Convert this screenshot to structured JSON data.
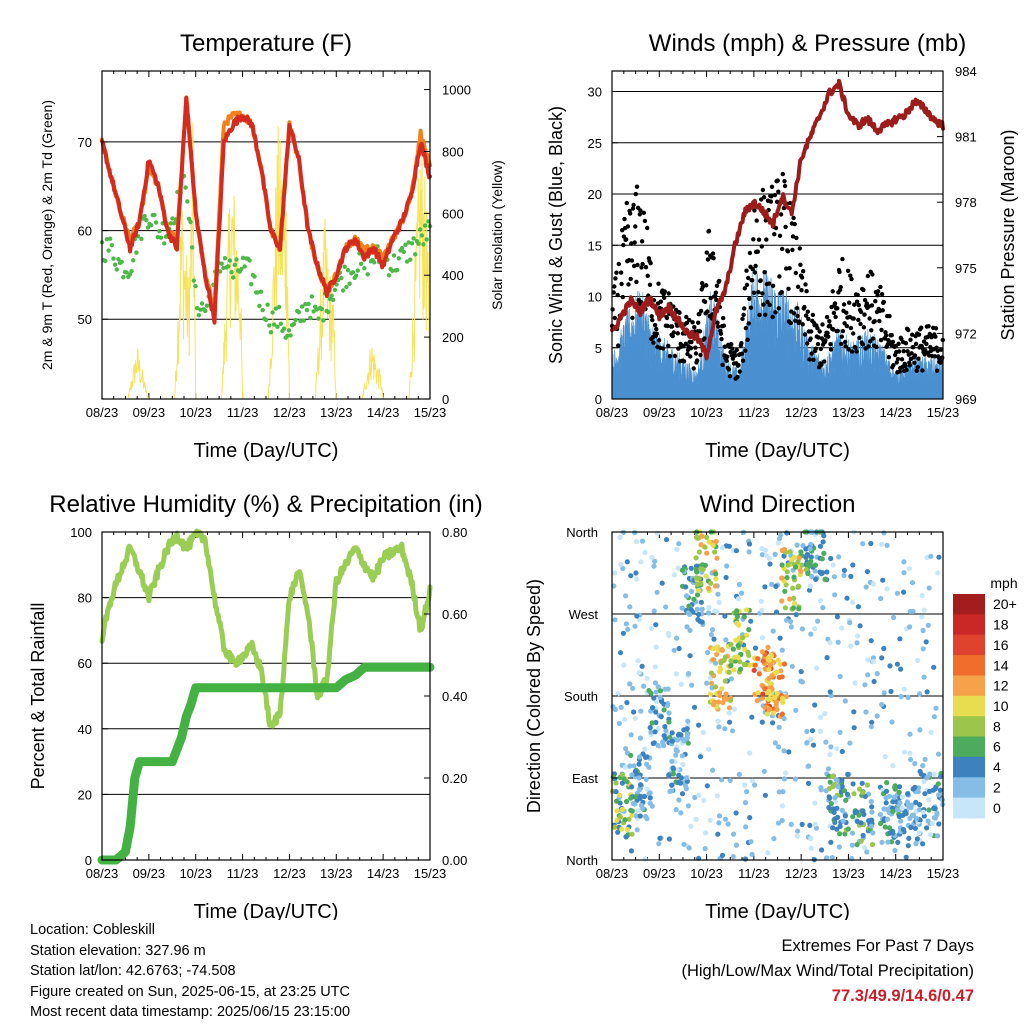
{
  "chart_data": [
    {
      "type": "line",
      "title": "Temperature (F)",
      "xlabel": "Time (Day/UTC)",
      "ylabel": "2m & 9m T (Red, Orange) & 2m Td (Green)",
      "y2label": "Solar Insolation (Yellow)",
      "x_ticks": [
        "08/23",
        "09/23",
        "10/23",
        "11/23",
        "12/23",
        "13/23",
        "14/23",
        "15/23"
      ],
      "ylim": [
        41,
        78
      ],
      "y_ticks": [
        50,
        60,
        70
      ],
      "y2lim": [
        0,
        1000
      ],
      "y2_ticks": [
        0,
        200,
        400,
        600,
        800,
        1000
      ],
      "grid": "horizontal",
      "series": [
        {
          "name": "2m T",
          "color": "#d52b1e",
          "x": [
            0,
            0.2,
            0.4,
            0.6,
            0.8,
            1.0,
            1.2,
            1.4,
            1.6,
            1.8,
            2.0,
            2.2,
            2.4,
            2.6,
            2.8,
            3.0,
            3.2,
            3.4,
            3.6,
            3.8,
            4.0,
            4.2,
            4.4,
            4.6,
            4.8,
            5.0,
            5.2,
            5.4,
            5.6,
            5.8,
            6.0,
            6.2,
            6.4,
            6.6,
            6.8,
            7.0
          ],
          "y": [
            70,
            66,
            62,
            58,
            61,
            68,
            65,
            60,
            58,
            75,
            62,
            55,
            50,
            70,
            72,
            73,
            72,
            67,
            60,
            58,
            72,
            68,
            60,
            56,
            53,
            55,
            58,
            59,
            57,
            58,
            56,
            59,
            61,
            64,
            70,
            66
          ]
        },
        {
          "name": "9m T",
          "color": "#f0821e",
          "x": [
            0,
            0.2,
            0.4,
            0.6,
            0.8,
            1.0,
            1.2,
            1.4,
            1.6,
            1.8,
            2.0,
            2.2,
            2.4,
            2.6,
            2.8,
            3.0,
            3.2,
            3.4,
            3.6,
            3.8,
            4.0,
            4.2,
            4.4,
            4.6,
            4.8,
            5.0,
            5.2,
            5.4,
            5.6,
            5.8,
            6.0,
            6.2,
            6.4,
            6.6,
            6.8,
            7.0
          ],
          "y": [
            70,
            66,
            62,
            59,
            61,
            67,
            65,
            60,
            59,
            75,
            62,
            55,
            51,
            72,
            73,
            73,
            72,
            67,
            60,
            58,
            72,
            68,
            60,
            56,
            53,
            55,
            58,
            59,
            58,
            58,
            57,
            59,
            61,
            64,
            71,
            67
          ]
        },
        {
          "name": "2m Td",
          "color": "#4cb848",
          "x": [
            0,
            0.2,
            0.4,
            0.6,
            0.8,
            1.0,
            1.2,
            1.4,
            1.6,
            1.8,
            2.0,
            2.2,
            2.4,
            2.6,
            2.8,
            3.0,
            3.2,
            3.4,
            3.6,
            3.8,
            4.0,
            4.2,
            4.4,
            4.6,
            4.8,
            5.0,
            5.2,
            5.4,
            5.6,
            5.8,
            6.0,
            6.2,
            6.4,
            6.6,
            6.8,
            7.0
          ],
          "y": [
            58,
            58,
            56,
            56,
            60,
            62,
            60,
            60,
            63,
            66,
            52,
            51,
            54,
            57,
            55,
            56,
            55,
            52,
            50,
            50,
            48,
            50,
            52,
            50,
            52,
            54,
            55,
            56,
            56,
            57,
            57,
            56,
            57,
            58,
            59,
            60
          ]
        },
        {
          "name": "Solar Insolation",
          "color": "#f7e35a",
          "axis": "right",
          "x": [
            0,
            0.55,
            0.75,
            0.95,
            1.0,
            1.55,
            1.7,
            1.85,
            1.95,
            2.0,
            2.55,
            2.75,
            2.95,
            3.0,
            3.55,
            3.75,
            3.95,
            4.0,
            4.55,
            4.75,
            4.95,
            5.0,
            5.55,
            5.75,
            5.95,
            6.0,
            6.55,
            6.8,
            6.95,
            7.0
          ],
          "y": [
            0,
            0,
            180,
            30,
            0,
            0,
            700,
            400,
            950,
            0,
            0,
            800,
            500,
            0,
            0,
            900,
            700,
            0,
            0,
            600,
            300,
            0,
            0,
            200,
            80,
            0,
            0,
            900,
            600,
            0
          ]
        }
      ]
    },
    {
      "type": "line",
      "title": "Winds (mph) & Pressure (mb)",
      "xlabel": "Time (Day/UTC)",
      "ylabel": "Sonic Wind & Gust (Blue, Black)",
      "y2label": "Station Pressure (Maroon)",
      "x_ticks": [
        "08/23",
        "09/23",
        "10/23",
        "11/23",
        "12/23",
        "13/23",
        "14/23",
        "15/23"
      ],
      "ylim": [
        0,
        32
      ],
      "y_ticks": [
        0,
        5,
        10,
        15,
        20,
        25,
        30
      ],
      "y2lim": [
        969,
        984
      ],
      "y2_ticks": [
        969,
        972,
        975,
        978,
        981,
        984
      ],
      "grid": "horizontal",
      "series": [
        {
          "name": "Sonic Wind",
          "color": "#4a90d0",
          "x": [
            0,
            0.3,
            0.6,
            0.9,
            1.2,
            1.5,
            1.8,
            2.1,
            2.4,
            2.7,
            3.0,
            3.3,
            3.6,
            3.9,
            4.2,
            4.5,
            4.8,
            5.1,
            5.4,
            5.7,
            6.0,
            6.3,
            6.6,
            6.9,
            7.0
          ],
          "y": [
            3,
            6,
            8,
            5,
            4,
            3,
            2,
            8,
            3,
            2,
            10,
            9,
            8,
            7,
            4,
            3,
            5,
            4,
            5,
            4,
            2,
            3,
            3,
            3,
            3
          ]
        },
        {
          "name": "Gust",
          "color": "#000000",
          "x": [
            0,
            0.3,
            0.6,
            0.9,
            1.2,
            1.5,
            1.8,
            2.1,
            2.4,
            2.7,
            3.0,
            3.3,
            3.6,
            3.9,
            4.2,
            4.5,
            4.8,
            5.1,
            5.4,
            5.7,
            6.0,
            6.3,
            6.6,
            6.9,
            7.0
          ],
          "y": [
            8,
            16,
            18,
            10,
            9,
            7,
            6,
            16,
            5,
            4,
            18,
            17,
            19,
            14,
            7,
            6,
            12,
            10,
            11,
            9,
            5,
            6,
            6,
            6,
            6
          ]
        },
        {
          "name": "Station Pressure",
          "color": "#9c1c1c",
          "axis": "right",
          "x": [
            0,
            0.2,
            0.4,
            0.6,
            0.8,
            1.0,
            1.2,
            1.4,
            1.6,
            1.8,
            2.0,
            2.2,
            2.4,
            2.6,
            2.8,
            3.0,
            3.2,
            3.4,
            3.6,
            3.8,
            4.0,
            4.2,
            4.4,
            4.6,
            4.8,
            5.0,
            5.2,
            5.4,
            5.6,
            5.8,
            6.0,
            6.2,
            6.4,
            6.6,
            6.8,
            7.0
          ],
          "y": [
            972.0,
            972.8,
            973.5,
            973.0,
            973.6,
            972.8,
            973.2,
            972.6,
            972.0,
            971.8,
            971.0,
            973.0,
            974.0,
            976.0,
            977.5,
            978.0,
            977.6,
            977.0,
            978.3,
            977.5,
            980.0,
            981.0,
            982.0,
            983.0,
            983.4,
            982.0,
            981.5,
            981.8,
            981.3,
            981.5,
            981.8,
            982.0,
            982.6,
            982.3,
            981.8,
            981.5
          ]
        }
      ]
    },
    {
      "type": "line",
      "title": "Relative Humidity (%) & Precipitation (in)",
      "xlabel": "Time (Day/UTC)",
      "ylabel": "Percent & Total Rainfall",
      "x_ticks": [
        "08/23",
        "09/23",
        "10/23",
        "11/23",
        "12/23",
        "13/23",
        "14/23",
        "15/23"
      ],
      "ylim": [
        0,
        100
      ],
      "y_ticks": [
        0,
        20,
        40,
        60,
        80,
        100
      ],
      "y2lim": [
        0,
        0.8
      ],
      "y2_ticks": [
        "0.00",
        "0.20",
        "0.40",
        "0.60",
        "0.80"
      ],
      "grid": "horizontal",
      "series": [
        {
          "name": "Relative Humidity",
          "color": "#9acd54",
          "x": [
            0,
            0.2,
            0.4,
            0.6,
            0.8,
            1.0,
            1.2,
            1.4,
            1.6,
            1.8,
            2.0,
            2.2,
            2.4,
            2.6,
            2.8,
            3.0,
            3.2,
            3.4,
            3.6,
            3.8,
            4.0,
            4.2,
            4.4,
            4.6,
            4.8,
            5.0,
            5.2,
            5.4,
            5.6,
            5.8,
            6.0,
            6.2,
            6.4,
            6.6,
            6.8,
            7.0
          ],
          "y": [
            68,
            80,
            88,
            95,
            88,
            80,
            88,
            95,
            99,
            95,
            99,
            98,
            80,
            65,
            60,
            62,
            65,
            58,
            40,
            45,
            80,
            88,
            75,
            50,
            55,
            85,
            90,
            95,
            90,
            86,
            92,
            94,
            95,
            85,
            70,
            82
          ]
        },
        {
          "name": "Total Precipitation",
          "color": "#44b243",
          "axis": "right",
          "x": [
            0,
            0.3,
            0.5,
            0.6,
            0.7,
            0.8,
            1.0,
            1.3,
            1.5,
            1.7,
            1.8,
            1.9,
            2.0,
            2.5,
            3.0,
            3.5,
            4.0,
            4.5,
            5.0,
            5.1,
            5.2,
            5.4,
            5.5,
            5.6,
            5.8,
            6.0,
            6.5,
            7.0
          ],
          "y": [
            0,
            0,
            0.02,
            0.08,
            0.2,
            0.24,
            0.24,
            0.24,
            0.24,
            0.3,
            0.35,
            0.38,
            0.42,
            0.42,
            0.42,
            0.42,
            0.42,
            0.42,
            0.42,
            0.43,
            0.44,
            0.45,
            0.46,
            0.47,
            0.47,
            0.47,
            0.47,
            0.47
          ]
        }
      ]
    },
    {
      "type": "scatter",
      "title": "Wind Direction",
      "xlabel": "Time (Day/UTC)",
      "ylabel": "Direction (Colored By Speed)",
      "x_ticks": [
        "08/23",
        "09/23",
        "10/23",
        "11/23",
        "12/23",
        "13/23",
        "14/23",
        "15/23"
      ],
      "y_ticks": [
        "North",
        "East",
        "South",
        "West",
        "North"
      ],
      "ylim": [
        0,
        360
      ],
      "grid": "horizontal",
      "colorbar": {
        "title": "mph",
        "labels": [
          "20+",
          "18",
          "16",
          "14",
          "12",
          "10",
          "8",
          "6",
          "4",
          "2",
          "0"
        ],
        "colors": [
          "#a31d1d",
          "#c92826",
          "#e0432d",
          "#f06d2c",
          "#f6a24a",
          "#e8dc4f",
          "#9cc54b",
          "#4cab5c",
          "#3b82bf",
          "#86bde6",
          "#c8e6fa"
        ]
      },
      "clusters": [
        {
          "x": 0.2,
          "y": 60,
          "speed": 7
        },
        {
          "x": 0.6,
          "y": 80,
          "speed": 4
        },
        {
          "x": 1.0,
          "y": 160,
          "speed": 3
        },
        {
          "x": 1.4,
          "y": 110,
          "speed": 3
        },
        {
          "x": 1.7,
          "y": 290,
          "speed": 4
        },
        {
          "x": 2.0,
          "y": 330,
          "speed": 9
        },
        {
          "x": 2.3,
          "y": 200,
          "speed": 10
        },
        {
          "x": 2.7,
          "y": 240,
          "speed": 8
        },
        {
          "x": 3.2,
          "y": 200,
          "speed": 13
        },
        {
          "x": 3.5,
          "y": 190,
          "speed": 12
        },
        {
          "x": 3.8,
          "y": 310,
          "speed": 9
        },
        {
          "x": 4.3,
          "y": 340,
          "speed": 5
        },
        {
          "x": 4.8,
          "y": 60,
          "speed": 5
        },
        {
          "x": 5.3,
          "y": 50,
          "speed": 5
        },
        {
          "x": 5.9,
          "y": 50,
          "speed": 4
        },
        {
          "x": 6.3,
          "y": 50,
          "speed": 3
        },
        {
          "x": 6.8,
          "y": 60,
          "speed": 3
        }
      ]
    }
  ],
  "station": {
    "location": "Location: Cobleskill",
    "elevation": "Station elevation: 327.96 m",
    "latlon": "Station lat/lon: 42.6763; -74.508",
    "created": "Figure created on Sun, 2025-06-15, at 23:25 UTC",
    "recent": "Most recent data timestamp: 2025/06/15 23:15:00"
  },
  "extremes": {
    "line1": "Extremes For Past 7 Days",
    "line2": "(High/Low/Max Wind/Total Precipitation)",
    "values": "77.3/49.9/14.6/0.47"
  }
}
